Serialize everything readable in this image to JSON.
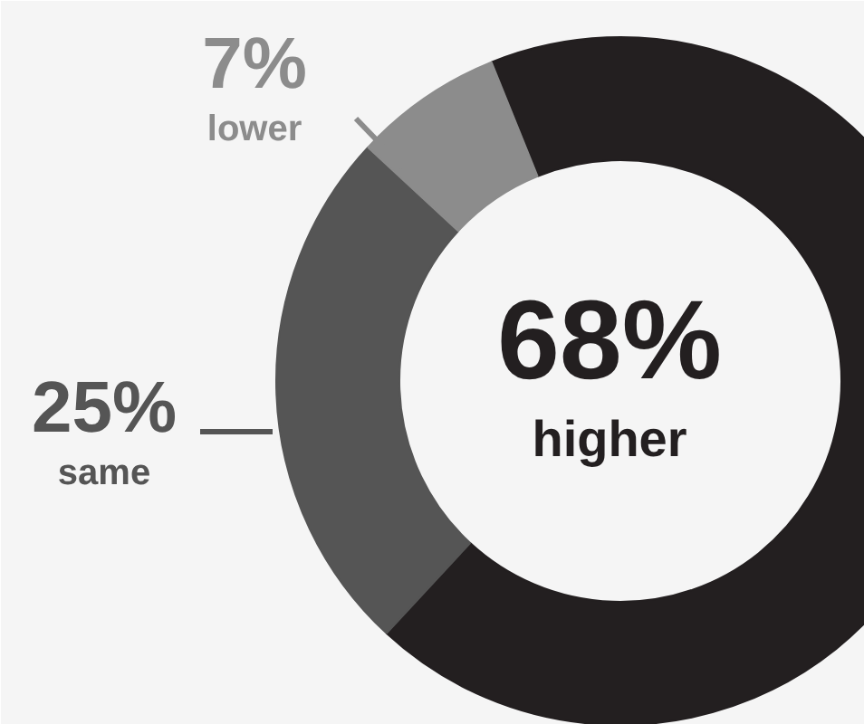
{
  "chart_data": {
    "type": "donut",
    "categories": [
      "higher",
      "same",
      "lower"
    ],
    "values": [
      68,
      25,
      7
    ],
    "value_labels": [
      "68%",
      "25%",
      "7%"
    ],
    "colors": [
      "#231f20",
      "#555555",
      "#8c8c8c"
    ]
  }
}
